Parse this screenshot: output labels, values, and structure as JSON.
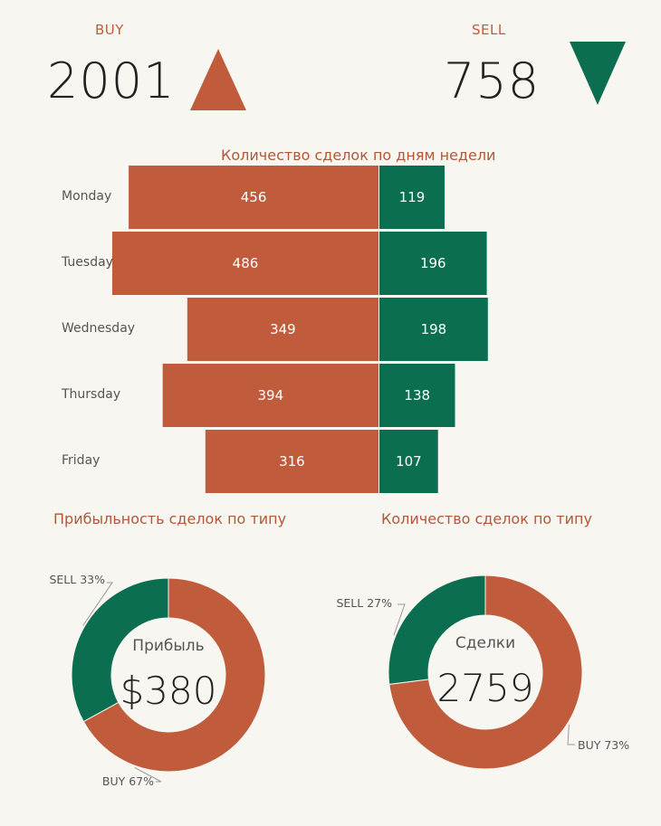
{
  "kpis": {
    "buy": {
      "label": "BUY",
      "value": "2001",
      "color": "#c05c3c",
      "icon": "triangle-up-icon"
    },
    "sell": {
      "label": "SELL",
      "value": "758",
      "color": "#0c6e50",
      "icon": "triangle-down-icon"
    }
  },
  "colors": {
    "buy": "#c05c3c",
    "sell": "#0c6e50",
    "background": "#f8f6f0"
  },
  "chart_data": [
    {
      "type": "bar",
      "orientation": "diverging-horizontal",
      "title": "Количество сделок по дням недели",
      "categories": [
        "Monday",
        "Tuesday",
        "Wednesday",
        "Thursday",
        "Friday"
      ],
      "series": [
        {
          "values": [
            456,
            486,
            349,
            394,
            316
          ]
        },
        {
          "values": [
            119,
            196,
            198,
            138,
            107
          ]
        }
      ]
    },
    {
      "type": "pie",
      "style": "donut",
      "title": "Прибыльность сделок по типу",
      "center_title": "Прибыль",
      "center_value": "$380",
      "slices": [
        {
          "label": "BUY 67%",
          "value": 67
        },
        {
          "label": "SELL 33%",
          "value": 33
        }
      ]
    },
    {
      "type": "pie",
      "style": "donut",
      "title": "Количество сделок по типу",
      "center_title": "Сделки",
      "center_value": "2759",
      "slices": [
        {
          "label": "BUY 73%",
          "value": 73
        },
        {
          "label": "SELL 27%",
          "value": 27
        }
      ]
    }
  ]
}
